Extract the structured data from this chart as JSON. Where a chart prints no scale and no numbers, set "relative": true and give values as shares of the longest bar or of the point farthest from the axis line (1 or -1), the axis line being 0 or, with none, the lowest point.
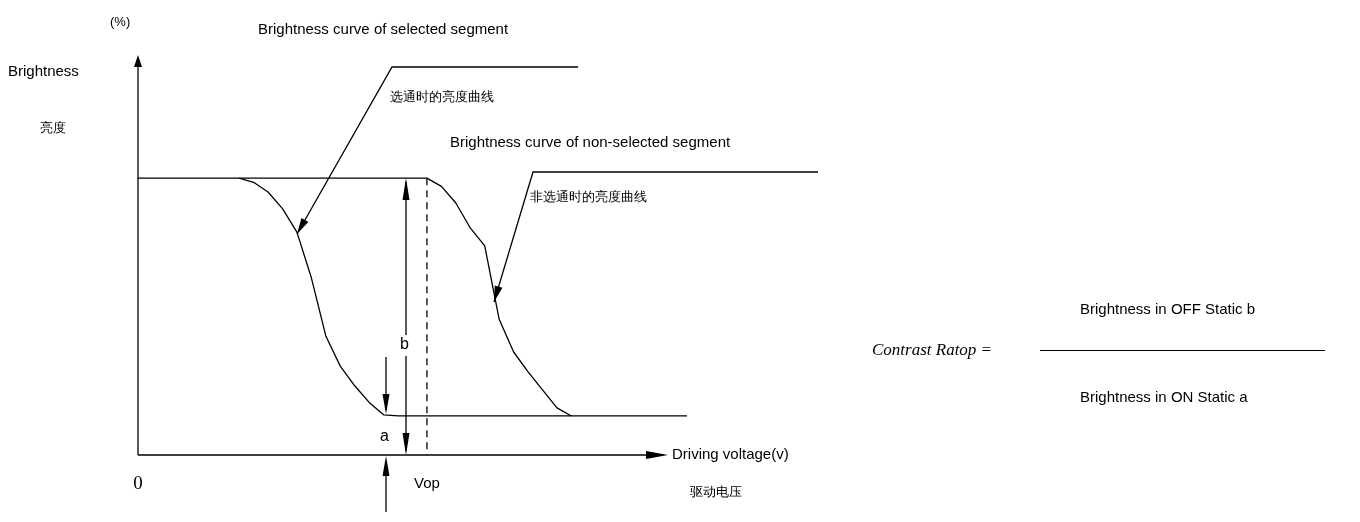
{
  "chart_data": {
    "type": "line",
    "relative": true,
    "xlabel": "Driving voltage(v)",
    "categories": [
      "0",
      null,
      null,
      null,
      null,
      null,
      null,
      null,
      null,
      null,
      null,
      null,
      null,
      null,
      null,
      null,
      null,
      null,
      null,
      null,
      "Vop",
      null,
      null,
      null,
      null,
      null,
      null,
      null,
      null,
      null,
      null,
      null,
      null,
      null,
      null,
      null,
      null,
      null,
      null
    ],
    "tick_labels": "x",
    "marker": "none",
    "line_style": "solid",
    "legend": false,
    "series": [
      {
        "color": "#000000",
        "values": [
          null,
          null,
          null,
          null,
          null,
          null,
          null,
          1,
          0.985,
          0.95,
          0.89,
          0.805,
          0.64,
          0.43,
          0.321,
          0.25,
          0.19,
          0.145,
          0.141,
          0.141,
          0.141,
          0.141,
          0.141,
          0.141,
          0.141,
          0.141,
          0.141,
          0.141,
          0.141,
          0.141,
          0.141,
          0.141,
          0.141,
          0.141,
          0.141,
          0.141,
          0.141,
          0.141,
          0.141
        ]
      },
      {
        "color": "#000000",
        "values": [
          1,
          1,
          1,
          1,
          1,
          1,
          1,
          1,
          1,
          1,
          1,
          1,
          1,
          1,
          1,
          1,
          1,
          1,
          1,
          1,
          1,
          0.97,
          0.91,
          0.82,
          0.755,
          0.49,
          0.372,
          0.3,
          0.235,
          0.17,
          0.141,
          null,
          null,
          null,
          null,
          null,
          null,
          null,
          null
        ]
      }
    ],
    "ref_lines": [
      {
        "axis": "x",
        "value": "Vop",
        "line_style": "dashed",
        "color": "#000000"
      }
    ],
    "annotations": [
      "(%)",
      "Brightness",
      "亮度",
      "Brightness curve of selected segment",
      "选通时的亮度曲线",
      "Brightness curve of non-selected segment",
      "非选通时的亮度曲线",
      "驱动电压",
      "a",
      "b",
      "Contrast Ratop =",
      "Brightness in OFF Static b",
      "Brightness in ON Static a"
    ]
  }
}
